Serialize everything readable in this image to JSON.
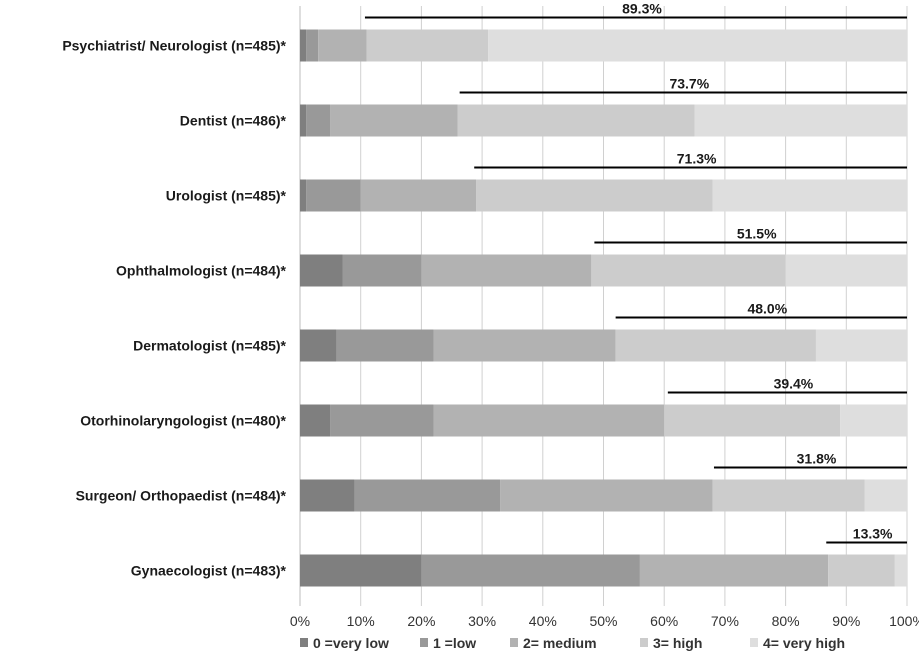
{
  "chart_data": {
    "type": "bar",
    "orientation": "horizontal",
    "stacked": true,
    "categories": [
      "Psychiatrist/ Neurologist (n=485)*",
      "Dentist (n=486)*",
      "Urologist (n=485)*",
      "Ophthalmologist (n=484)*",
      "Dermatologist (n=485)*",
      "Otorhinolaryngologist (n=480)*",
      "Surgeon/ Orthopaedist (n=484)*",
      "Gynaecologist (n=483)*"
    ],
    "series": [
      {
        "name": "0 =very low",
        "color": "#7f7f7f",
        "values": [
          1,
          1,
          1,
          7,
          6,
          5,
          9,
          20
        ]
      },
      {
        "name": "1 =low",
        "color": "#999999",
        "values": [
          2,
          4,
          9,
          13,
          16,
          17,
          24,
          36
        ]
      },
      {
        "name": "2= medium",
        "color": "#b2b2b2",
        "values": [
          8,
          21,
          19,
          28,
          30,
          38,
          35,
          31
        ]
      },
      {
        "name": "3= high",
        "color": "#cccccc",
        "values": [
          20,
          39,
          39,
          32,
          33,
          29,
          25,
          11
        ]
      },
      {
        "name": "4= very high",
        "color": "#dedede",
        "values": [
          69,
          35,
          32,
          20,
          15,
          11,
          7,
          2
        ]
      }
    ],
    "annotations": [
      "89.3%",
      "73.7%",
      "71.3%",
      "51.5%",
      "48.0%",
      "39.4%",
      "31.8%",
      "13.3%"
    ],
    "annotation_values": [
      89.3,
      73.7,
      71.3,
      51.5,
      48.0,
      39.4,
      31.8,
      13.3
    ],
    "x_ticks": [
      "0%",
      "10%",
      "20%",
      "30%",
      "40%",
      "50%",
      "60%",
      "70%",
      "80%",
      "90%",
      "100%"
    ],
    "xlim": [
      0,
      100
    ],
    "grid": true,
    "legend_position": "bottom"
  }
}
